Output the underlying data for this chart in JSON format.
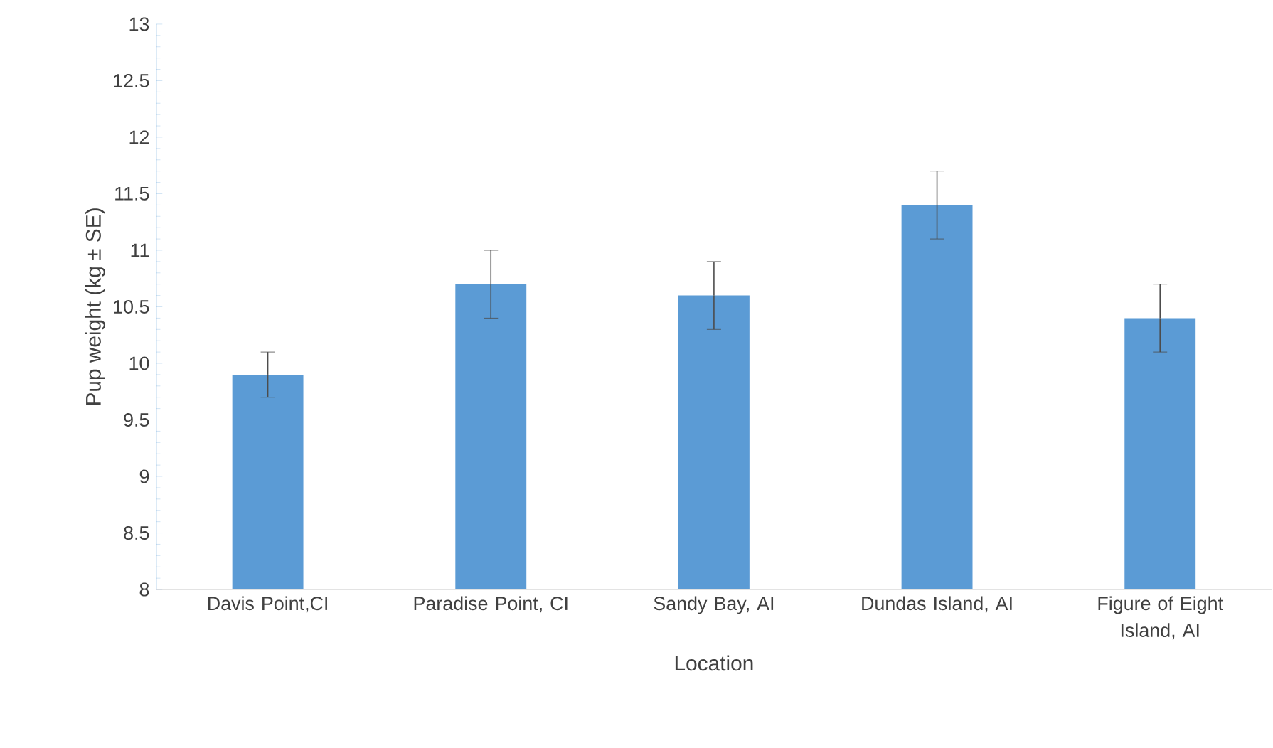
{
  "chart_data": {
    "type": "bar",
    "xlabel": "Location",
    "ylabel": "Pup weight  (kg ± SE)",
    "categories": [
      "Davis Point,CI",
      "Paradise Point, CI",
      "Sandy Bay, AI",
      "Dundas Island, AI",
      "Figure of Eight Island, AI"
    ],
    "values": [
      9.9,
      10.7,
      10.6,
      11.4,
      10.4
    ],
    "errors": [
      0.2,
      0.3,
      0.3,
      0.3,
      0.3
    ],
    "color": "#5b9bd5",
    "ylim": [
      8,
      13
    ],
    "yticks": [
      8,
      8.5,
      9,
      9.5,
      10,
      10.5,
      11,
      11.5,
      12,
      12.5,
      13
    ],
    "grid": false
  }
}
